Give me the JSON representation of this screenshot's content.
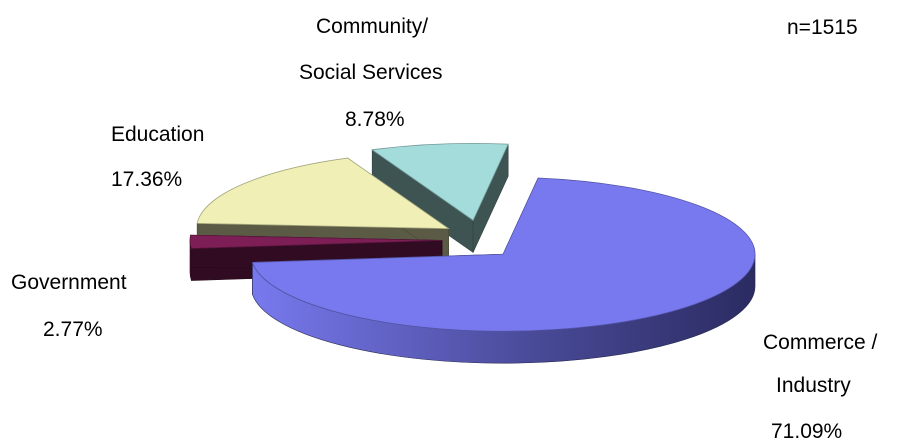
{
  "chart_data": {
    "type": "pie",
    "style": "3d-exploded",
    "note": "n=1515",
    "slices": [
      {
        "label_lines": [
          "Commerce /",
          "Industry"
        ],
        "percent_label": "71.09%",
        "value": 71.09,
        "color": "#7879EE",
        "exploded": true
      },
      {
        "label_lines": [
          "Government"
        ],
        "percent_label": "2.77%",
        "value": 2.77,
        "color": "#7E1E56",
        "exploded": true
      },
      {
        "label_lines": [
          "Education"
        ],
        "percent_label": "17.36%",
        "value": 17.36,
        "color": "#EFEFB6",
        "exploded": true
      },
      {
        "label_lines": [
          "Community/",
          "Social Services"
        ],
        "percent_label": "8.78%",
        "value": 8.78,
        "color": "#A3DCDA",
        "exploded": true
      }
    ]
  }
}
